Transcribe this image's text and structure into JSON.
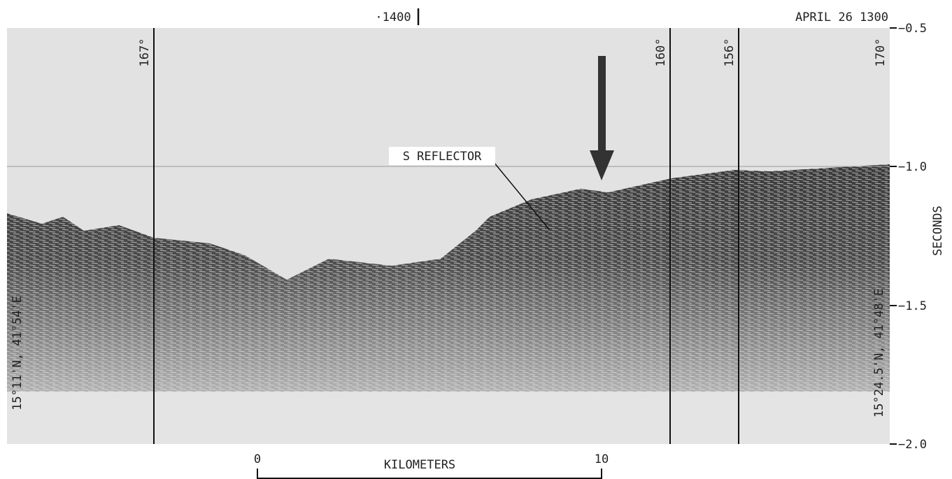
{
  "header": {
    "time_mark": "·1400",
    "date": "APRIL 26 1300"
  },
  "course_labels": [
    "167°",
    "160°",
    "156°",
    "170°"
  ],
  "y_axis": {
    "label": "SECONDS",
    "ticks": [
      "−0.5",
      "−1.0",
      "−1.5",
      "−2.0"
    ]
  },
  "annotation": "S REFLECTOR",
  "positions": {
    "start": "15°11'N, 41°54'E",
    "end": "15°24.5'N, 41°48'E"
  },
  "scale_bar": {
    "start": "0",
    "end": "10",
    "unit": "KILOMETERS"
  }
}
